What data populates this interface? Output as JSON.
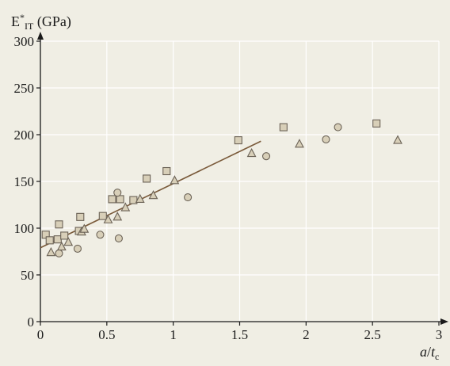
{
  "chart_data": {
    "type": "scatter",
    "ylabel_main": "E",
    "ylabel_sup": "*",
    "ylabel_sub": "IT",
    "ylabel_unit": " (GPa)",
    "xlabel_a": "a",
    "xlabel_slash": "/",
    "xlabel_t": "t",
    "xlabel_sub": "c",
    "xlim": [
      0,
      3
    ],
    "ylim": [
      0,
      300
    ],
    "xticks": [
      0,
      0.5,
      1,
      1.5,
      2,
      2.5,
      3
    ],
    "xtick_labels": [
      "0",
      "0.5",
      "1",
      "1.5",
      "2",
      "2.5",
      "3"
    ],
    "yticks": [
      0,
      50,
      100,
      150,
      200,
      250,
      300
    ],
    "ytick_labels": [
      "0",
      "50",
      "100",
      "150",
      "200",
      "250",
      "300"
    ],
    "grid": true,
    "colors": {
      "background": "#f0eee4",
      "grid": "#ffffff",
      "marker_fill": "#d8cfb8",
      "marker_stroke": "#6b6256",
      "fit_line": "#7a5a3a",
      "axis": "#1a1a1a"
    },
    "series": [
      {
        "marker": "square",
        "points": [
          [
            0.04,
            93
          ],
          [
            0.07,
            87
          ],
          [
            0.13,
            88
          ],
          [
            0.14,
            104
          ],
          [
            0.18,
            92
          ],
          [
            0.29,
            97
          ],
          [
            0.3,
            112
          ],
          [
            0.47,
            113
          ],
          [
            0.54,
            131
          ],
          [
            0.6,
            131
          ],
          [
            0.7,
            130
          ],
          [
            0.8,
            153
          ],
          [
            0.95,
            161
          ],
          [
            1.49,
            194
          ],
          [
            1.83,
            208
          ],
          [
            2.53,
            212
          ]
        ]
      },
      {
        "marker": "circle",
        "points": [
          [
            0.14,
            73
          ],
          [
            0.28,
            78
          ],
          [
            0.45,
            93
          ],
          [
            0.58,
            138
          ],
          [
            0.59,
            89
          ],
          [
            1.11,
            133
          ],
          [
            1.7,
            177
          ],
          [
            2.15,
            195
          ],
          [
            2.24,
            208
          ]
        ]
      },
      {
        "marker": "triangle",
        "points": [
          [
            0.08,
            74
          ],
          [
            0.16,
            80
          ],
          [
            0.21,
            85
          ],
          [
            0.31,
            96
          ],
          [
            0.33,
            99
          ],
          [
            0.51,
            109
          ],
          [
            0.58,
            112
          ],
          [
            0.64,
            122
          ],
          [
            0.75,
            131
          ],
          [
            0.85,
            135
          ],
          [
            1.01,
            151
          ],
          [
            1.59,
            180
          ],
          [
            1.95,
            190
          ],
          [
            2.69,
            194
          ]
        ]
      }
    ],
    "fit_line": {
      "x": [
        0,
        1.66
      ],
      "y": [
        79,
        193
      ]
    }
  }
}
